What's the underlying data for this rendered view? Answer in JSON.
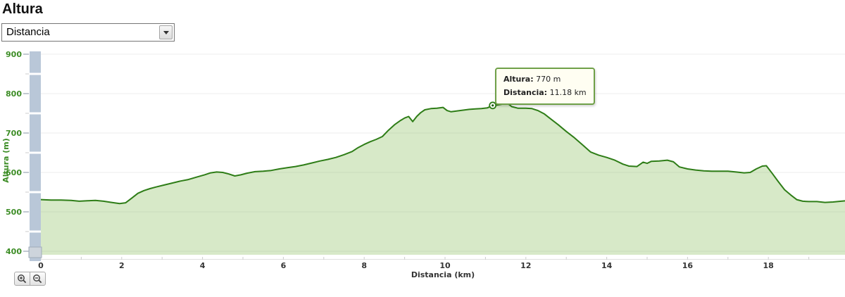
{
  "header": {
    "title": "Altura"
  },
  "controls": {
    "metric_select": {
      "value": "Distancia"
    }
  },
  "tooltip": {
    "altitude_label": "Altura:",
    "altitude_value": "770 m",
    "distance_label": "Distancia:",
    "distance_value": "11.18 km"
  },
  "chart_data": {
    "type": "area",
    "title": "Altura",
    "xlabel": "Distancia (km)",
    "ylabel": "Altura (m)",
    "xlim": [
      0,
      19.9
    ],
    "ylim": [
      400,
      900
    ],
    "grid": true,
    "legend": "none",
    "x_ticks": [
      0,
      2,
      4,
      6,
      8,
      10,
      12,
      14,
      16,
      18
    ],
    "y_ticks": [
      900,
      800,
      700,
      600,
      500,
      400
    ],
    "y_minor_ticks": [
      850,
      750,
      650,
      550,
      450
    ],
    "marker": {
      "x": 11.18,
      "y": 770
    },
    "colors": {
      "line": "#2e7d17",
      "fill": "#7ab648",
      "fill_opacity": 0.3,
      "axis_label_green": "#3d8d26",
      "slider": "#b9c7d8"
    },
    "series": [
      {
        "name": "Altura",
        "x": [
          0,
          0.25,
          0.5,
          0.75,
          0.95,
          1.15,
          1.35,
          1.55,
          1.75,
          1.95,
          2.1,
          2.25,
          2.4,
          2.55,
          2.7,
          2.85,
          3.05,
          3.25,
          3.45,
          3.65,
          3.85,
          4.05,
          4.2,
          4.35,
          4.5,
          4.65,
          4.8,
          4.95,
          5.1,
          5.3,
          5.5,
          5.7,
          5.9,
          6.1,
          6.3,
          6.5,
          6.7,
          6.9,
          7.1,
          7.3,
          7.5,
          7.7,
          7.85,
          8,
          8.15,
          8.3,
          8.45,
          8.6,
          8.75,
          8.9,
          9,
          9.1,
          9.2,
          9.3,
          9.4,
          9.5,
          9.65,
          9.8,
          9.95,
          10.05,
          10.15,
          10.3,
          10.45,
          10.6,
          10.75,
          10.9,
          11.05,
          11.18,
          11.3,
          11.45,
          11.55,
          11.65,
          11.8,
          12,
          12.15,
          12.3,
          12.45,
          12.6,
          12.8,
          13,
          13.2,
          13.4,
          13.6,
          13.8,
          14,
          14.2,
          14.4,
          14.55,
          14.75,
          14.9,
          15,
          15.1,
          15.3,
          15.5,
          15.65,
          15.8,
          16,
          16.2,
          16.4,
          16.6,
          16.8,
          17,
          17.2,
          17.4,
          17.55,
          17.7,
          17.85,
          17.95,
          18.1,
          18.25,
          18.4,
          18.55,
          18.7,
          18.85,
          19,
          19.2,
          19.4,
          19.6,
          19.8,
          19.9
        ],
        "y": [
          531,
          530,
          530,
          529,
          527,
          528,
          529,
          527,
          524,
          521,
          523,
          535,
          547,
          554,
          559,
          563,
          568,
          573,
          578,
          582,
          588,
          594,
          599,
          601,
          600,
          596,
          591,
          594,
          598,
          602,
          603,
          605,
          609,
          612,
          615,
          619,
          624,
          629,
          633,
          638,
          645,
          653,
          663,
          671,
          678,
          684,
          691,
          707,
          721,
          732,
          738,
          742,
          729,
          742,
          752,
          759,
          762,
          763,
          765,
          757,
          754,
          756,
          758,
          760,
          761,
          762,
          764,
          770,
          771,
          774,
          775,
          767,
          763,
          763,
          762,
          757,
          749,
          737,
          721,
          704,
          688,
          670,
          652,
          644,
          638,
          631,
          621,
          616,
          615,
          626,
          623,
          628,
          629,
          631,
          627,
          614,
          609,
          606,
          604,
          603,
          603,
          603,
          601,
          599,
          600,
          609,
          616,
          617,
          597,
          576,
          556,
          543,
          531,
          527,
          526,
          526,
          524,
          525,
          527,
          528
        ]
      }
    ]
  }
}
